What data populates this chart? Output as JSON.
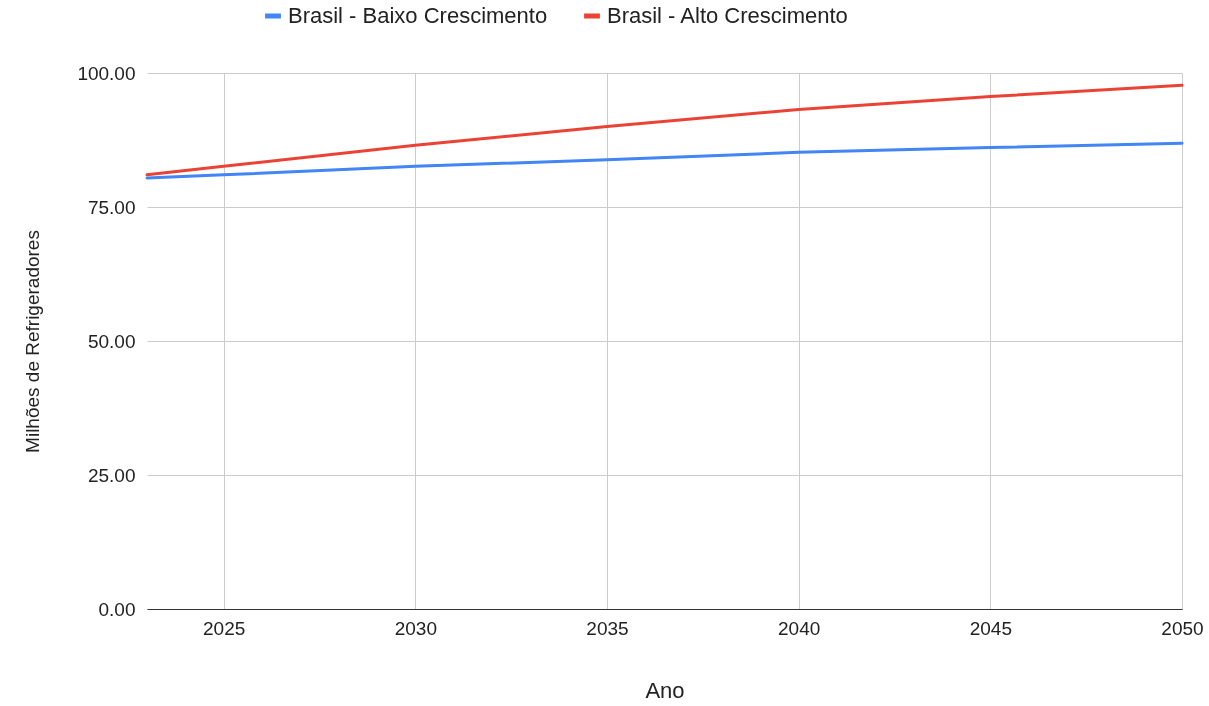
{
  "chart_data": {
    "type": "line",
    "xlabel": "Ano",
    "ylabel": "Milhões de Refrigeradores",
    "x": [
      2023,
      2025,
      2030,
      2035,
      2040,
      2045,
      2050
    ],
    "series": [
      {
        "name": "Brasil - Baixo Crescimento",
        "color": "#4285f4",
        "values": [
          80.4,
          81.0,
          82.6,
          83.8,
          85.2,
          86.1,
          86.9
        ]
      },
      {
        "name": "Brasil - Alto Crescimento",
        "color": "#ea4335",
        "values": [
          81.0,
          82.6,
          86.5,
          90.0,
          93.2,
          95.6,
          97.7
        ]
      }
    ],
    "xlim": [
      2023,
      2050
    ],
    "xticks": [
      2025,
      2030,
      2035,
      2040,
      2045,
      2050
    ],
    "ylim": [
      0,
      100
    ],
    "yticks": [
      {
        "value": 0,
        "label": "0.00"
      },
      {
        "value": 25,
        "label": "25.00"
      },
      {
        "value": 50,
        "label": "50.00"
      },
      {
        "value": 75,
        "label": "75.00"
      },
      {
        "value": 100,
        "label": "100.00"
      }
    ],
    "grid": true,
    "legend": "top",
    "marker": "none",
    "line_style": "solid"
  }
}
